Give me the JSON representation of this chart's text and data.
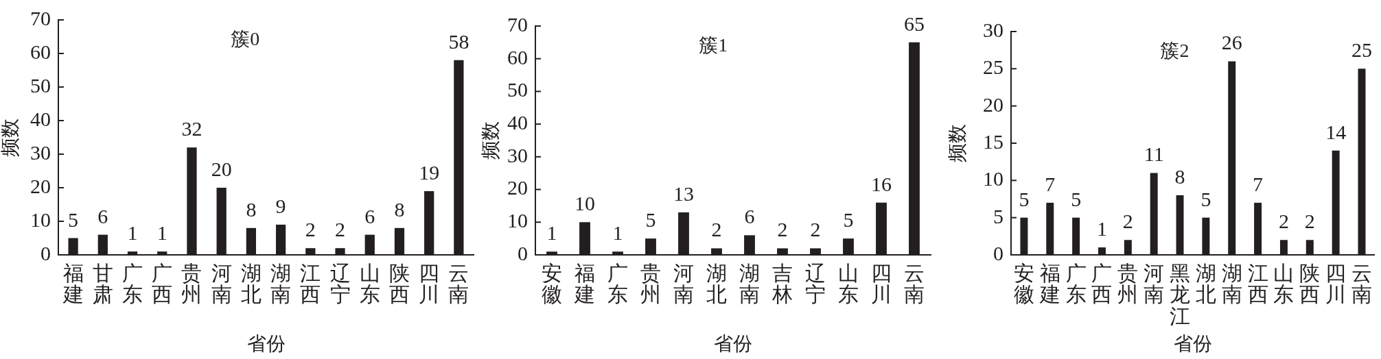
{
  "chart_data": [
    {
      "type": "bar",
      "title": "簇0",
      "xlabel": "省份",
      "ylabel": "频数",
      "categories": [
        "福建",
        "甘肃",
        "广东",
        "广西",
        "贵州",
        "河南",
        "湖北",
        "湖南",
        "江西",
        "辽宁",
        "山东",
        "陕西",
        "四川",
        "云南"
      ],
      "values": [
        5,
        6,
        1,
        1,
        32,
        20,
        8,
        9,
        2,
        2,
        6,
        8,
        19,
        58
      ],
      "color": "#231f20",
      "ylim": [
        0,
        70
      ],
      "yticks": [
        0,
        10,
        20,
        30,
        40,
        50,
        60,
        70
      ],
      "data_labels": true
    },
    {
      "type": "bar",
      "title": "簇1",
      "xlabel": "省份",
      "ylabel": "频数",
      "categories": [
        "安徽",
        "福建",
        "广东",
        "贵州",
        "河南",
        "湖北",
        "湖南",
        "吉林",
        "辽宁",
        "山东",
        "四川",
        "云南"
      ],
      "values": [
        1,
        10,
        1,
        5,
        13,
        2,
        6,
        2,
        2,
        5,
        16,
        65
      ],
      "color": "#231f20",
      "ylim": [
        0,
        70
      ],
      "yticks": [
        0,
        10,
        20,
        30,
        40,
        50,
        60,
        70
      ],
      "data_labels": true
    },
    {
      "type": "bar",
      "title": "簇2",
      "xlabel": "省份",
      "ylabel": "频数",
      "categories": [
        "安徽",
        "福建",
        "广东",
        "广西",
        "贵州",
        "河南",
        "黑龙江",
        "湖北",
        "湖南",
        "江西",
        "山东",
        "陕西",
        "四川",
        "云南"
      ],
      "values": [
        5,
        7,
        5,
        1,
        2,
        11,
        8,
        5,
        26,
        7,
        2,
        2,
        14,
        25
      ],
      "color": "#231f20",
      "ylim": [
        0,
        30
      ],
      "yticks": [
        0,
        5,
        10,
        15,
        20,
        25,
        30
      ],
      "data_labels": true
    }
  ]
}
